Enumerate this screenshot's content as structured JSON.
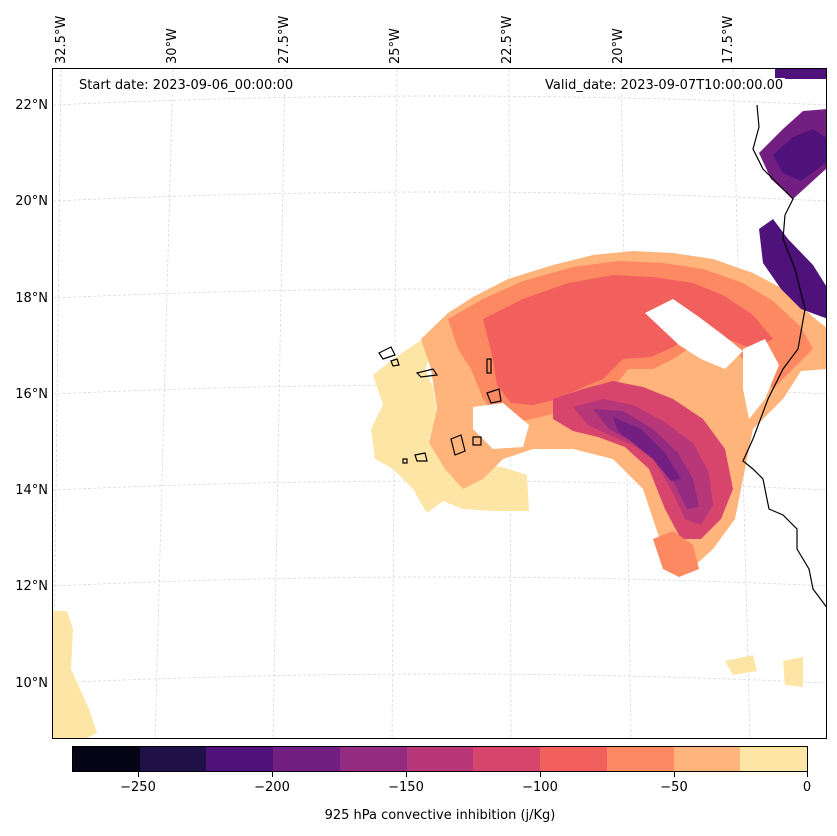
{
  "map": {
    "start_date": "Start date: 2023-09-06_00:00:00",
    "valid_date": "Valid_date: 2023-09-07T10:00:00.00",
    "lon_labels": [
      "32.5°W",
      "30°W",
      "27.5°W",
      "25°W",
      "22.5°W",
      "20°W",
      "17.5°W"
    ],
    "lat_labels": [
      "22°N",
      "20°N",
      "18°N",
      "16°N",
      "14°N",
      "12°N",
      "10°N"
    ],
    "extent": {
      "lon_min": -33.0,
      "lon_max": -16.0,
      "lat_min": 9.0,
      "lat_max": 22.8
    },
    "coast_color": "#000000",
    "grid_color": "#d9d9d9"
  },
  "colorbar": {
    "label": "925 hPa convective inhibition (j/Kg)",
    "ticks": [
      "−250",
      "−200",
      "−150",
      "−100",
      "−50",
      "0"
    ],
    "tick_values": [
      -250,
      -200,
      -150,
      -100,
      -50,
      0
    ],
    "range": [
      -275,
      0
    ],
    "colors": [
      "#050416",
      "#1f1147",
      "#4f127b",
      "#721f81",
      "#932b80",
      "#b73779",
      "#d8456c",
      "#f1605d",
      "#fc8961",
      "#feb47b",
      "#fde6a5"
    ]
  }
}
